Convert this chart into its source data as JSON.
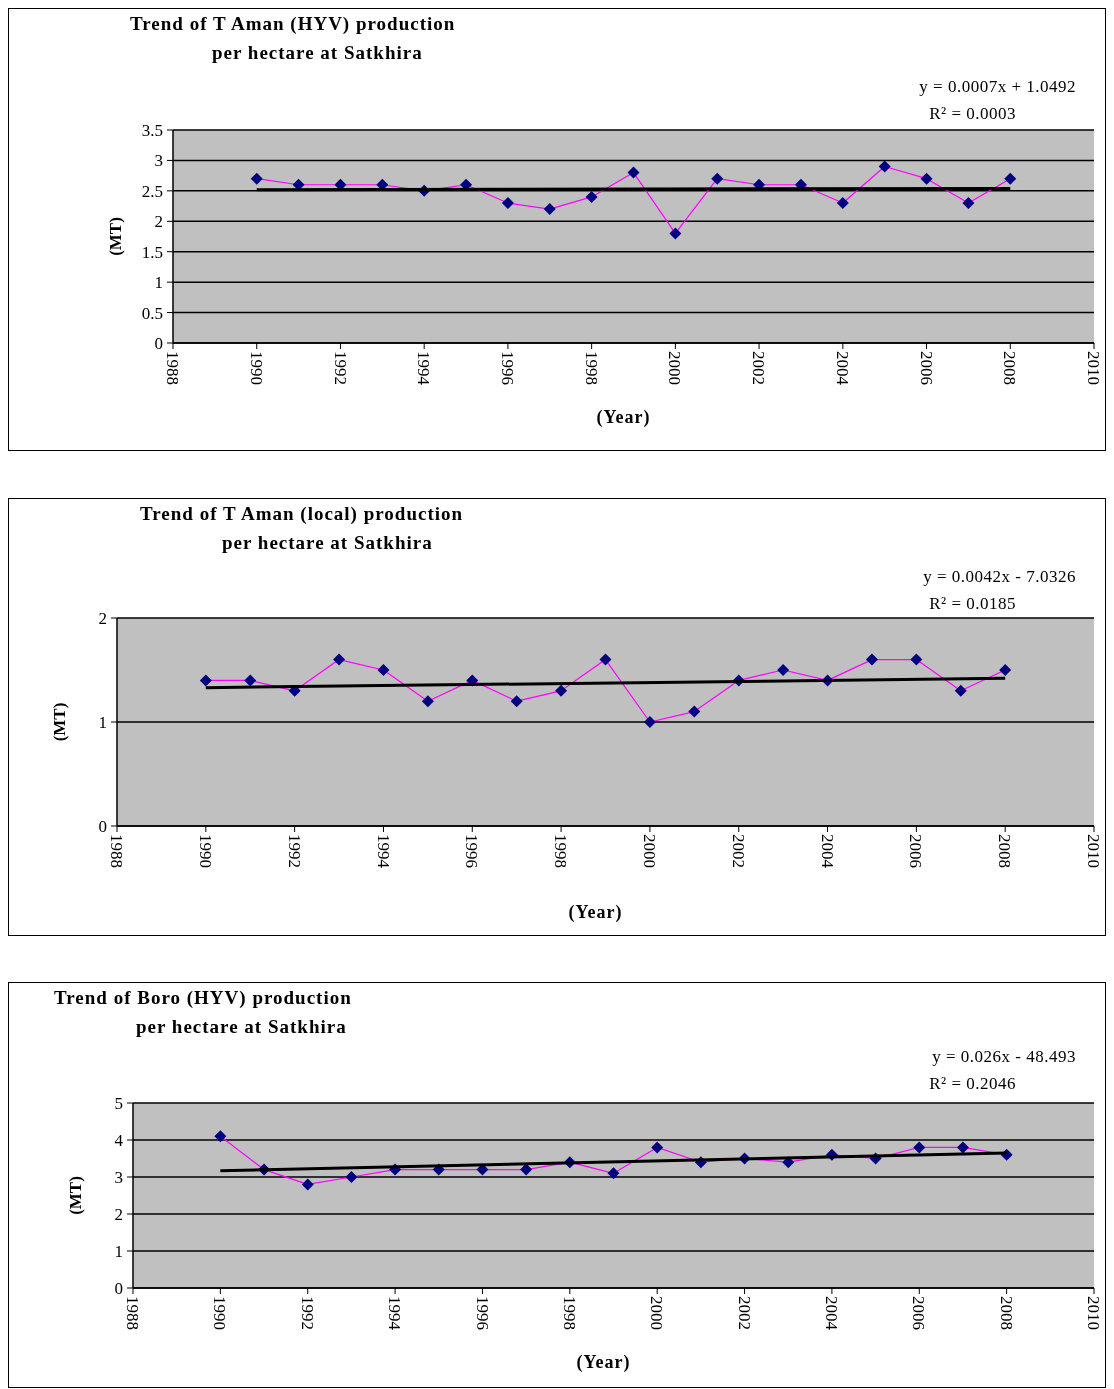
{
  "chart_data": [
    {
      "type": "line",
      "title": "Trend of T Aman (HYV) production\nper hectare at Satkhira",
      "xlabel": "(Year)",
      "ylabel": "(MT)",
      "annotations": [
        "y = 0.0007x + 1.0492",
        "R² = 0.0003"
      ],
      "xlim": [
        1988,
        2010
      ],
      "xticks": [
        1988,
        1990,
        1992,
        1994,
        1996,
        1998,
        2000,
        2002,
        2004,
        2006,
        2008,
        2010
      ],
      "ylim": [
        0,
        3.5
      ],
      "yticks": [
        0,
        0.5,
        1,
        1.5,
        2,
        2.5,
        3,
        3.5
      ],
      "grid": "y",
      "x": [
        1990,
        1991,
        1992,
        1993,
        1994,
        1995,
        1996,
        1997,
        1998,
        1999,
        2000,
        2001,
        2002,
        2003,
        2004,
        2005,
        2006,
        2007,
        2008
      ],
      "series": [
        {
          "color": "#ff00ff",
          "marker": "diamond",
          "values": [
            2.7,
            2.6,
            2.6,
            2.6,
            2.5,
            2.6,
            2.3,
            2.2,
            2.4,
            2.8,
            1.8,
            2.7,
            2.6,
            2.6,
            2.3,
            2.9,
            2.7,
            2.3,
            2.7
          ]
        },
        {
          "color": "#000000",
          "marker": "none",
          "values": [
            2.52,
            null,
            null,
            null,
            null,
            null,
            null,
            null,
            null,
            null,
            null,
            null,
            null,
            null,
            null,
            null,
            null,
            null,
            2.54
          ]
        }
      ]
    },
    {
      "type": "line",
      "title": "Trend of T Aman (local) production\nper hectare at Satkhira",
      "xlabel": "(Year)",
      "ylabel": "(MT)",
      "annotations": [
        "y = 0.0042x - 7.0326",
        "R² = 0.0185"
      ],
      "xlim": [
        1988,
        2010
      ],
      "xticks": [
        1988,
        1990,
        1992,
        1994,
        1996,
        1998,
        2000,
        2002,
        2004,
        2006,
        2008,
        2010
      ],
      "ylim": [
        0,
        2
      ],
      "yticks": [
        0,
        1,
        2
      ],
      "grid": "y",
      "x": [
        1990,
        1991,
        1992,
        1993,
        1994,
        1995,
        1996,
        1997,
        1998,
        1999,
        2000,
        2001,
        2002,
        2003,
        2004,
        2005,
        2006,
        2007,
        2008
      ],
      "series": [
        {
          "color": "#ff00ff",
          "marker": "diamond",
          "values": [
            1.4,
            1.4,
            1.3,
            1.6,
            1.5,
            1.2,
            1.4,
            1.2,
            1.3,
            1.6,
            1.0,
            1.1,
            1.4,
            1.5,
            1.4,
            1.6,
            1.6,
            1.3,
            1.5
          ]
        },
        {
          "color": "#000000",
          "marker": "none",
          "values": [
            1.33,
            null,
            null,
            null,
            null,
            null,
            null,
            null,
            null,
            null,
            null,
            null,
            null,
            null,
            null,
            null,
            null,
            null,
            1.42
          ]
        }
      ]
    },
    {
      "type": "line",
      "title": "Trend of Boro (HYV) production\nper hectare at Satkhira",
      "xlabel": "(Year)",
      "ylabel": "(MT)",
      "annotations": [
        "y = 0.026x - 48.493",
        "R² = 0.2046"
      ],
      "xlim": [
        1988,
        2010
      ],
      "xticks": [
        1988,
        1990,
        1992,
        1994,
        1996,
        1998,
        2000,
        2002,
        2004,
        2006,
        2008,
        2010
      ],
      "ylim": [
        0,
        5
      ],
      "yticks": [
        0,
        1,
        2,
        3,
        4,
        5
      ],
      "grid": "y",
      "x": [
        1990,
        1991,
        1992,
        1993,
        1994,
        1995,
        1996,
        1997,
        1998,
        1999,
        2000,
        2001,
        2002,
        2003,
        2004,
        2005,
        2006,
        2007,
        2008
      ],
      "series": [
        {
          "color": "#ff00ff",
          "marker": "diamond",
          "values": [
            4.1,
            3.2,
            2.8,
            3.0,
            3.2,
            3.2,
            3.2,
            3.2,
            3.4,
            3.1,
            3.8,
            3.4,
            3.5,
            3.4,
            3.6,
            3.5,
            3.8,
            3.8,
            3.6
          ]
        },
        {
          "color": "#000000",
          "marker": "none",
          "values": [
            3.17,
            null,
            null,
            null,
            null,
            null,
            null,
            null,
            null,
            null,
            null,
            null,
            null,
            null,
            null,
            null,
            null,
            null,
            3.65
          ]
        }
      ]
    }
  ]
}
